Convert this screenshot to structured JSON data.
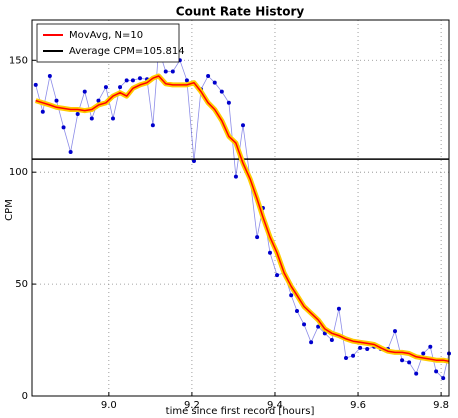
{
  "chart_data": {
    "type": "line",
    "title": "Count Rate History",
    "xlabel": "time since first record [hours]",
    "ylabel": "CPM",
    "x": [
      8.824,
      8.841,
      8.858,
      8.874,
      8.891,
      8.908,
      8.925,
      8.942,
      8.959,
      8.975,
      8.993,
      9.01,
      9.027,
      9.043,
      9.058,
      9.075,
      9.092,
      9.106,
      9.12,
      9.137,
      9.154,
      9.171,
      9.188,
      9.205,
      9.222,
      9.239,
      9.255,
      9.272,
      9.289,
      9.306,
      9.323,
      9.34,
      9.357,
      9.371,
      9.388,
      9.405,
      9.422,
      9.439,
      9.453,
      9.47,
      9.487,
      9.504,
      9.52,
      9.537,
      9.554,
      9.571,
      9.588,
      9.605,
      9.622,
      9.639,
      9.655,
      9.672,
      9.689,
      9.706,
      9.723,
      9.74,
      9.757,
      9.774,
      9.788,
      9.805,
      9.819
    ],
    "series": [
      {
        "color": "#0000cc",
        "values": [
          139,
          127,
          143,
          132,
          120,
          109,
          126,
          136,
          124,
          132,
          138,
          124,
          138,
          141,
          141,
          142,
          141.5,
          121,
          155,
          145,
          145,
          150,
          141,
          105,
          137,
          143,
          140,
          136,
          131,
          98,
          121,
          97,
          71,
          84,
          64,
          54,
          55,
          45,
          38,
          32,
          24,
          31,
          28,
          25,
          39,
          17,
          18,
          21.5,
          21,
          22,
          21,
          21,
          29,
          16,
          15,
          10,
          19,
          22,
          11,
          8,
          19
        ]
      },
      {
        "name": "MovAvg, N=10",
        "color": "#ff0000",
        "outline": "#ffcc00",
        "values": [
          132,
          131,
          130,
          129,
          128.5,
          128,
          128,
          127.5,
          128,
          130,
          131,
          134,
          135.5,
          134,
          137.5,
          139,
          140,
          142,
          143,
          139.5,
          139,
          139,
          139,
          140,
          136,
          131,
          128,
          123,
          116,
          113,
          104,
          97,
          88,
          80,
          71,
          64,
          55,
          49,
          45,
          40,
          37,
          34,
          30,
          28,
          27,
          25.5,
          24.5,
          24,
          23.5,
          23,
          21.5,
          20,
          19.5,
          19.5,
          19,
          17.5,
          17,
          16.5,
          16,
          16,
          15.5
        ]
      }
    ],
    "hline": {
      "name": "Average CPM=105.814",
      "value": 105.814,
      "color": "#000000"
    },
    "xlim": [
      8.815,
      9.819
    ],
    "ylim": [
      0,
      168
    ],
    "xticks": [
      {
        "value": 9,
        "label": "9.0"
      },
      {
        "value": 9.2,
        "label": "9.2"
      },
      {
        "value": 9.4,
        "label": "9.4"
      },
      {
        "value": 9.6,
        "label": "9.6"
      },
      {
        "value": 9.8,
        "label": "9.8"
      }
    ],
    "yticks": [
      0,
      50,
      100,
      150
    ],
    "grid": true,
    "legend": "upper left"
  }
}
